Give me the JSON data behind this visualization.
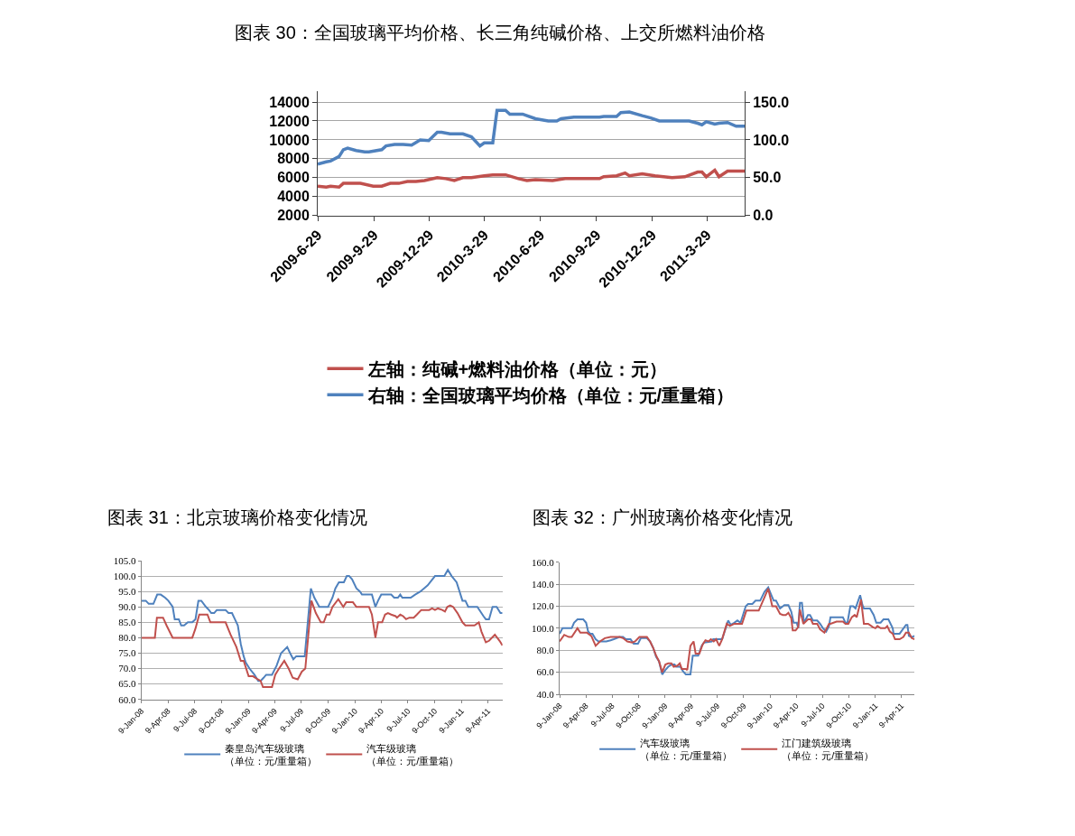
{
  "chart_data": [
    {
      "type": "line",
      "title": "图表 30：全国玻璃平均价格、长三角纯碱价格、上交所燃料油价格",
      "series": [
        {
          "name": "左轴：纯碱+燃料油价格（单位：元）",
          "color": "#c0504d",
          "x": [
            "2009-06-29",
            "2009-07-13",
            "2009-07-20",
            "2009-08-03",
            "2009-08-10",
            "2009-09-07",
            "2009-09-28",
            "2009-10-12",
            "2009-10-26",
            "2009-11-09",
            "2009-11-23",
            "2009-12-07",
            "2009-12-21",
            "2010-01-11",
            "2010-01-25",
            "2010-02-08",
            "2010-02-22",
            "2010-03-08",
            "2010-03-29",
            "2010-04-12",
            "2010-05-03",
            "2010-05-24",
            "2010-06-07",
            "2010-06-21",
            "2010-07-19",
            "2010-08-09",
            "2010-10-04",
            "2010-10-11",
            "2010-11-01",
            "2010-11-15",
            "2010-11-22",
            "2010-12-13",
            "2011-01-03",
            "2011-01-31",
            "2011-02-21",
            "2011-03-14",
            "2011-03-21",
            "2011-03-28",
            "2011-04-11",
            "2011-04-18",
            "2011-05-02",
            "2011-05-30"
          ],
          "values": [
            5100,
            5000,
            5100,
            5000,
            5400,
            5400,
            5100,
            5100,
            5400,
            5400,
            5600,
            5600,
            5700,
            6000,
            5900,
            5700,
            6000,
            6000,
            6200,
            6300,
            6300,
            5900,
            5700,
            5800,
            5700,
            5900,
            5900,
            6100,
            6200,
            6500,
            6200,
            6400,
            6200,
            6000,
            6100,
            6600,
            6600,
            6100,
            6800,
            6100,
            6700,
            6700
          ]
        },
        {
          "name": "右轴：全国玻璃平均价格（单位：元/重量箱）",
          "color": "#4f81bd",
          "axis": "y2",
          "x": [
            "2009-06-29",
            "2009-07-13",
            "2009-07-20",
            "2009-08-03",
            "2009-08-10",
            "2009-08-17",
            "2009-08-31",
            "2009-09-14",
            "2009-09-21",
            "2009-10-12",
            "2009-10-19",
            "2009-11-02",
            "2009-11-16",
            "2009-11-30",
            "2009-12-14",
            "2009-12-28",
            "2010-01-11",
            "2010-01-18",
            "2010-02-01",
            "2010-02-22",
            "2010-03-08",
            "2010-03-22",
            "2010-03-29",
            "2010-04-12",
            "2010-04-19",
            "2010-05-03",
            "2010-05-10",
            "2010-05-31",
            "2010-06-21",
            "2010-07-12",
            "2010-07-26",
            "2010-08-02",
            "2010-08-23",
            "2010-10-04",
            "2010-10-11",
            "2010-11-01",
            "2010-11-08",
            "2010-11-22",
            "2010-12-13",
            "2010-12-27",
            "2011-01-10",
            "2011-02-28",
            "2011-03-14",
            "2011-03-21",
            "2011-03-28",
            "2011-04-11",
            "2011-04-18",
            "2011-05-02",
            "2011-05-16",
            "2011-05-30"
          ],
          "values": [
            68,
            71,
            72,
            78,
            87,
            89,
            86,
            84,
            84,
            87,
            92,
            94,
            94,
            93,
            100,
            99,
            110,
            110,
            108,
            108,
            104,
            92,
            96,
            96,
            139,
            139,
            134,
            134,
            128,
            125,
            125,
            128,
            130,
            130,
            131,
            131,
            136,
            137,
            132,
            129,
            125,
            125,
            122,
            120,
            124,
            121,
            122,
            123,
            118,
            118
          ]
        }
      ],
      "xlim": [
        "2009-06-29",
        "2011-05-30"
      ],
      "xticks": [
        {
          "value": "2009-06-29",
          "label": "2009-6-29"
        },
        {
          "value": "2009-09-29",
          "label": "2009-9-29"
        },
        {
          "value": "2009-12-29",
          "label": "2009-12-29"
        },
        {
          "value": "2010-03-29",
          "label": "2010-3-29"
        },
        {
          "value": "2010-06-29",
          "label": "2010-6-29"
        },
        {
          "value": "2010-09-29",
          "label": "2010-9-29"
        },
        {
          "value": "2010-12-29",
          "label": "2010-12-29"
        },
        {
          "value": "2011-03-29",
          "label": "2011-3-29"
        }
      ],
      "ylim": [
        2000,
        15150
      ],
      "yticks": [
        2000,
        4000,
        6000,
        8000,
        10000,
        12000,
        14000
      ],
      "y2lim": [
        0,
        164.4
      ],
      "y2ticks": [
        {
          "value": 0,
          "label": "0.0"
        },
        {
          "value": 50,
          "label": "50.0"
        },
        {
          "value": 100,
          "label": "100.0"
        },
        {
          "value": 150,
          "label": "150.0"
        }
      ],
      "grid": "y",
      "legend": "bottom",
      "line_style": "solid",
      "marker": "none"
    },
    {
      "type": "line",
      "title": "图表 31：北京玻璃价格变化情况",
      "series": [
        {
          "name": "秦皇岛汽车级玻璃（单位：元/重量箱）",
          "color": "#4f81bd",
          "x": [
            "2008-01-09",
            "2008-01-24",
            "2008-02-03",
            "2008-02-19",
            "2008-03-03",
            "2008-03-15",
            "2008-03-30",
            "2008-04-10",
            "2008-04-25",
            "2008-05-02",
            "2008-05-16",
            "2008-05-24",
            "2008-06-03",
            "2008-06-16",
            "2008-07-01",
            "2008-07-12",
            "2008-07-22",
            "2008-08-01",
            "2008-08-17",
            "2008-08-27",
            "2008-09-04",
            "2008-09-14",
            "2008-09-23",
            "2008-10-23",
            "2008-11-02",
            "2008-11-14",
            "2008-11-24",
            "2008-12-04",
            "2008-12-14",
            "2008-12-24",
            "2008-12-31",
            "2009-01-13",
            "2009-01-30",
            "2009-02-12",
            "2009-02-20",
            "2009-03-02",
            "2009-03-11",
            "2009-03-31",
            "2009-04-16",
            "2009-05-01",
            "2009-05-22",
            "2009-06-01",
            "2009-06-12",
            "2009-06-22",
            "2009-07-21",
            "2009-08-11",
            "2009-08-23",
            "2009-09-09",
            "2009-10-09",
            "2009-10-24",
            "2009-11-03",
            "2009-11-15",
            "2009-12-02",
            "2009-12-12",
            "2009-12-20",
            "2009-12-30",
            "2010-01-14",
            "2010-01-26",
            "2010-02-02",
            "2010-03-08",
            "2010-03-20",
            "2010-03-29",
            "2010-04-09",
            "2010-05-13",
            "2010-05-23",
            "2010-06-05",
            "2010-06-13",
            "2010-06-20",
            "2010-07-19",
            "2010-08-03",
            "2010-08-21",
            "2010-09-15",
            "2010-10-10",
            "2010-11-11",
            "2010-11-23",
            "2010-12-06",
            "2010-12-23",
            "2011-01-12",
            "2011-01-22",
            "2011-02-01",
            "2011-03-04",
            "2011-03-25",
            "2011-04-02",
            "2011-04-13",
            "2011-04-25",
            "2011-05-09",
            "2011-05-22",
            "2011-05-29"
          ],
          "values": [
            92,
            92,
            91,
            91,
            94,
            94,
            93,
            92,
            90,
            86,
            86,
            84,
            84,
            85,
            85,
            86,
            92,
            92,
            90,
            89,
            88,
            88,
            89,
            89,
            88,
            88,
            86,
            84,
            78,
            74,
            72,
            70,
            68,
            66,
            66,
            67,
            68,
            68,
            71,
            75,
            77,
            75,
            73,
            74,
            74,
            96,
            93,
            90,
            90,
            93,
            96,
            98,
            98,
            100,
            100,
            99,
            96,
            95,
            94,
            94,
            90,
            92,
            94,
            94,
            93,
            93,
            94,
            93,
            93,
            94,
            95,
            97,
            100,
            100,
            102,
            100,
            98,
            92,
            92,
            90,
            90,
            87,
            86,
            86,
            90,
            90,
            88,
            88
          ]
        },
        {
          "name": "汽车级玻璃（单位：元/重量箱）",
          "color": "#c0504d",
          "x": [
            "2008-01-09",
            "2008-02-24",
            "2008-03-02",
            "2008-03-23",
            "2008-04-04",
            "2008-04-25",
            "2008-07-01",
            "2008-07-12",
            "2008-07-25",
            "2008-08-22",
            "2008-09-01",
            "2008-10-23",
            "2008-11-09",
            "2008-11-29",
            "2008-12-14",
            "2008-12-24",
            "2009-01-10",
            "2009-01-25",
            "2009-02-10",
            "2009-02-20",
            "2009-02-28",
            "2009-03-31",
            "2009-04-11",
            "2009-04-24",
            "2009-05-12",
            "2009-05-27",
            "2009-06-10",
            "2009-06-27",
            "2009-07-11",
            "2009-07-23",
            "2009-08-13",
            "2009-08-28",
            "2009-09-14",
            "2009-09-24",
            "2009-10-04",
            "2009-10-14",
            "2009-10-24",
            "2009-11-13",
            "2009-11-30",
            "2009-12-10",
            "2010-01-02",
            "2010-01-14",
            "2010-02-26",
            "2010-03-08",
            "2010-03-20",
            "2010-03-29",
            "2010-04-12",
            "2010-04-22",
            "2010-05-02",
            "2010-05-13",
            "2010-05-28",
            "2010-06-02",
            "2010-06-13",
            "2010-06-23",
            "2010-07-03",
            "2010-07-14",
            "2010-07-29",
            "2010-08-09",
            "2010-08-24",
            "2010-09-20",
            "2010-09-30",
            "2010-10-10",
            "2010-10-20",
            "2010-11-04",
            "2010-11-13",
            "2010-11-21",
            "2010-12-01",
            "2010-12-11",
            "2010-12-26",
            "2011-01-12",
            "2011-01-22",
            "2011-02-22",
            "2011-03-09",
            "2011-03-18",
            "2011-04-02",
            "2011-04-13",
            "2011-05-03",
            "2011-05-19",
            "2011-05-29"
          ],
          "values": [
            80,
            80,
            86.5,
            86.5,
            84,
            80,
            80,
            83,
            87.5,
            87.5,
            85,
            85,
            81,
            77,
            72.5,
            72.5,
            67.5,
            67.5,
            66.5,
            66,
            64,
            64,
            68,
            70,
            72.5,
            70,
            67,
            66.5,
            69,
            70,
            92,
            88,
            85,
            85,
            87.5,
            87.5,
            90,
            92.5,
            90,
            91.5,
            91.5,
            90,
            90,
            87.5,
            80,
            85,
            85,
            87.5,
            88,
            87.5,
            87,
            86.5,
            87.5,
            87,
            86,
            86.5,
            86.5,
            87.5,
            89,
            89,
            89.5,
            89,
            89.5,
            89,
            88.5,
            90,
            90.5,
            90,
            88,
            85,
            84,
            84,
            85,
            82,
            78.5,
            79,
            81,
            79,
            77.5
          ]
        }
      ],
      "xlim": [
        "2008-01-09",
        "2011-05-29"
      ],
      "xticks": [
        {
          "value": "2008-01-09",
          "label": "9-Jan-08"
        },
        {
          "value": "2008-04-09",
          "label": "9-Apr-08"
        },
        {
          "value": "2008-07-09",
          "label": "9-Jul-08"
        },
        {
          "value": "2008-10-09",
          "label": "9-Oct-08"
        },
        {
          "value": "2009-01-09",
          "label": "9-Jan-09"
        },
        {
          "value": "2009-04-09",
          "label": "9-Apr-09"
        },
        {
          "value": "2009-07-09",
          "label": "9-Jul-09"
        },
        {
          "value": "2009-10-09",
          "label": "9-Oct-09"
        },
        {
          "value": "2010-01-09",
          "label": "9-Jan-10"
        },
        {
          "value": "2010-04-09",
          "label": "9-Apr-10"
        },
        {
          "value": "2010-07-09",
          "label": "9-Jul-10"
        },
        {
          "value": "2010-10-09",
          "label": "9-Oct-10"
        },
        {
          "value": "2011-01-09",
          "label": "9-Jan-11"
        },
        {
          "value": "2011-04-09",
          "label": "9-Apr-11"
        }
      ],
      "ylim": [
        60,
        105
      ],
      "yticks": [
        {
          "value": 60,
          "label": "60.0"
        },
        {
          "value": 65,
          "label": "65.0"
        },
        {
          "value": 70,
          "label": "70.0"
        },
        {
          "value": 75,
          "label": "75.0"
        },
        {
          "value": 80,
          "label": "80.0"
        },
        {
          "value": 85,
          "label": "85.0"
        },
        {
          "value": 90,
          "label": "90.0"
        },
        {
          "value": 95,
          "label": "95.0"
        },
        {
          "value": 100,
          "label": "100.0"
        },
        {
          "value": 105,
          "label": "105.0"
        }
      ],
      "grid": "y",
      "legend": "bottom",
      "line_style": "solid",
      "marker": "none"
    },
    {
      "type": "line",
      "title": "图表 32：广州玻璃价格变化情况",
      "series": [
        {
          "name": "汽车级玻璃（单位：元/重量箱）",
          "color": "#4f81bd",
          "x": [
            "2008-01-09",
            "2008-01-19",
            "2008-02-20",
            "2008-02-28",
            "2008-03-11",
            "2008-03-31",
            "2008-04-10",
            "2008-04-17",
            "2008-04-24",
            "2008-05-02",
            "2008-05-13",
            "2008-05-23",
            "2008-06-19",
            "2008-07-04",
            "2008-07-15",
            "2008-08-04",
            "2008-08-16",
            "2008-08-26",
            "2008-09-11",
            "2008-09-22",
            "2008-10-07",
            "2008-10-17",
            "2008-11-07",
            "2008-11-18",
            "2008-11-29",
            "2008-12-09",
            "2008-12-19",
            "2008-12-30",
            "2009-01-10",
            "2009-01-20",
            "2009-01-31",
            "2009-02-11",
            "2009-02-16",
            "2009-03-03",
            "2009-03-12",
            "2009-03-22",
            "2009-04-07",
            "2009-04-15",
            "2009-05-04",
            "2009-05-16",
            "2009-05-24",
            "2009-06-20",
            "2009-06-25",
            "2009-07-26",
            "2009-08-05",
            "2009-08-16",
            "2009-08-25",
            "2009-09-06",
            "2009-09-17",
            "2009-09-28",
            "2009-10-16",
            "2009-10-24",
            "2009-11-08",
            "2009-11-19",
            "2009-12-05",
            "2009-12-20",
            "2010-01-02",
            "2010-01-13",
            "2010-01-21",
            "2010-01-29",
            "2010-02-12",
            "2010-02-22",
            "2010-02-27",
            "2010-03-13",
            "2010-03-23",
            "2010-03-31",
            "2010-04-11",
            "2010-04-16",
            "2010-04-22",
            "2010-04-29",
            "2010-05-06",
            "2010-05-20",
            "2010-05-27",
            "2010-06-06",
            "2010-06-21",
            "2010-07-01",
            "2010-07-11",
            "2010-07-22",
            "2010-08-01",
            "2010-08-06",
            "2010-09-18",
            "2010-09-27",
            "2010-10-04",
            "2010-10-14",
            "2010-10-24",
            "2010-11-01",
            "2010-11-17",
            "2010-11-25",
            "2010-11-30",
            "2010-12-21",
            "2011-01-03",
            "2011-01-12",
            "2011-01-27",
            "2011-02-06",
            "2011-02-23",
            "2011-03-10",
            "2011-03-13",
            "2011-04-03",
            "2011-04-25",
            "2011-04-30",
            "2011-05-05",
            "2011-05-15",
            "2011-05-25"
          ],
          "values": [
            95,
            100,
            100,
            105,
            108,
            108,
            105,
            97,
            95,
            95,
            90,
            88,
            88,
            89,
            90,
            92,
            92,
            90,
            90,
            86,
            86,
            91,
            91,
            88,
            82,
            74,
            70,
            58,
            62,
            65,
            67,
            67,
            65,
            65,
            61,
            58,
            58,
            75,
            75,
            84,
            87,
            88,
            90,
            90,
            98,
            107,
            103,
            105,
            107,
            105,
            120,
            122,
            122,
            125,
            125,
            133,
            137,
            130,
            125,
            125,
            118,
            120,
            121,
            121,
            115,
            105,
            105,
            100,
            123,
            123,
            105,
            112,
            112,
            107,
            107,
            104,
            100,
            97,
            102,
            110,
            110,
            105,
            105,
            120,
            120,
            118,
            130,
            121,
            118,
            118,
            112,
            105,
            105,
            108,
            108,
            100,
            95,
            95,
            103,
            103,
            93,
            92,
            93
          ]
        },
        {
          "name": "江门建筑级玻璃（单位：元/重量箱）",
          "color": "#c0504d",
          "x": [
            "2008-01-09",
            "2008-01-25",
            "2008-02-10",
            "2008-02-20",
            "2008-03-11",
            "2008-03-21",
            "2008-04-12",
            "2008-04-28",
            "2008-05-13",
            "2008-05-28",
            "2008-06-14",
            "2008-07-04",
            "2008-08-04",
            "2008-08-16",
            "2008-08-31",
            "2008-09-17",
            "2008-09-27",
            "2008-10-12",
            "2008-11-07",
            "2008-11-18",
            "2008-11-29",
            "2008-12-09",
            "2008-12-19",
            "2008-12-30",
            "2009-01-10",
            "2009-01-20",
            "2009-01-31",
            "2009-02-08",
            "2009-02-21",
            "2009-03-01",
            "2009-03-08",
            "2009-03-22",
            "2009-03-27",
            "2009-04-07",
            "2009-04-18",
            "2009-04-25",
            "2009-05-08",
            "2009-05-19",
            "2009-05-29",
            "2009-06-09",
            "2009-06-17",
            "2009-06-27",
            "2009-07-05",
            "2009-07-16",
            "2009-07-26",
            "2009-08-11",
            "2009-08-22",
            "2009-09-06",
            "2009-10-03",
            "2009-10-18",
            "2009-11-30",
            "2009-12-20",
            "2010-01-02",
            "2010-01-16",
            "2010-01-29",
            "2010-02-12",
            "2010-02-22",
            "2010-03-04",
            "2010-03-13",
            "2010-03-23",
            "2010-03-28",
            "2010-04-07",
            "2010-04-16",
            "2010-04-22",
            "2010-05-04",
            "2010-05-20",
            "2010-05-30",
            "2010-06-06",
            "2010-06-21",
            "2010-07-01",
            "2010-07-16",
            "2010-08-01",
            "2010-08-06",
            "2010-08-27",
            "2010-09-18",
            "2010-09-27",
            "2010-10-07",
            "2010-10-19",
            "2010-10-29",
            "2010-11-05",
            "2010-11-20",
            "2010-11-30",
            "2010-12-15",
            "2010-12-31",
            "2011-01-09",
            "2011-01-16",
            "2011-01-27",
            "2011-02-12",
            "2011-02-19",
            "2011-02-28",
            "2011-03-10",
            "2011-03-18",
            "2011-04-03",
            "2011-04-16",
            "2011-04-25",
            "2011-05-05",
            "2011-05-15",
            "2011-05-25"
          ],
          "values": [
            88,
            94,
            92,
            92,
            100,
            96,
            96,
            93,
            84,
            88,
            91,
            92,
            92,
            91,
            88,
            87,
            88,
            92,
            92,
            88,
            82,
            75,
            70,
            60,
            67,
            68,
            68,
            65,
            66,
            68,
            63,
            63,
            62,
            84,
            88,
            77,
            77,
            85,
            89,
            88,
            90,
            88,
            90,
            84,
            90,
            104,
            102,
            104,
            104,
            116,
            116,
            128,
            136,
            120,
            120,
            113,
            112,
            112,
            114,
            109,
            98,
            98,
            101,
            117,
            104,
            108,
            108,
            104,
            104,
            99,
            96,
            104,
            104,
            106,
            106,
            104,
            104,
            110,
            112,
            110,
            126,
            104,
            104,
            101,
            100,
            102,
            100,
            100,
            102,
            97,
            95,
            90,
            90,
            92,
            96,
            96,
            91,
            90
          ]
        }
      ],
      "xlim": [
        "2008-01-09",
        "2011-05-25"
      ],
      "xticks": [
        {
          "value": "2008-01-09",
          "label": "9-Jan-08"
        },
        {
          "value": "2008-04-09",
          "label": "9-Apr-08"
        },
        {
          "value": "2008-07-09",
          "label": "9-Jul-08"
        },
        {
          "value": "2008-10-09",
          "label": "9-Oct-08"
        },
        {
          "value": "2009-01-09",
          "label": "9-Jan-09"
        },
        {
          "value": "2009-04-09",
          "label": "9-Apr-09"
        },
        {
          "value": "2009-07-09",
          "label": "9-Jul-09"
        },
        {
          "value": "2009-10-09",
          "label": "9-Oct-09"
        },
        {
          "value": "2010-01-09",
          "label": "9-Jan-10"
        },
        {
          "value": "2010-04-09",
          "label": "9-Apr-10"
        },
        {
          "value": "2010-07-09",
          "label": "9-Jul-10"
        },
        {
          "value": "2010-10-09",
          "label": "9-Oct-10"
        },
        {
          "value": "2011-01-09",
          "label": "9-Jan-11"
        },
        {
          "value": "2011-04-09",
          "label": "9-Apr-11"
        }
      ],
      "ylim": [
        40,
        160
      ],
      "yticks": [
        {
          "value": 40,
          "label": "40.0"
        },
        {
          "value": 60,
          "label": "60.0"
        },
        {
          "value": 80,
          "label": "80.0"
        },
        {
          "value": 100,
          "label": "100.0"
        },
        {
          "value": 120,
          "label": "120.0"
        },
        {
          "value": 140,
          "label": "140.0"
        },
        {
          "value": 160,
          "label": "160.0"
        }
      ],
      "grid": "y",
      "legend": "bottom",
      "line_style": "solid",
      "marker": "none"
    }
  ]
}
